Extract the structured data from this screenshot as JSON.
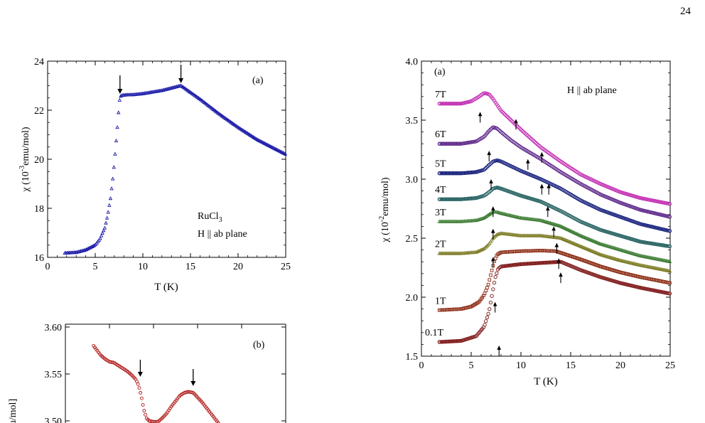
{
  "page_number": "24",
  "chart_data": [
    {
      "id": "a_left",
      "type": "scatter",
      "panel_label": "(a)",
      "xlabel": "T (K)",
      "ylabel": "χ (10-3emu/mol)",
      "xlim": [
        0,
        25
      ],
      "ylim": [
        16,
        24
      ],
      "xticks": [
        "0",
        "5",
        "10",
        "15",
        "20",
        "25"
      ],
      "yticks": [
        "16",
        "18",
        "20",
        "22",
        "24"
      ],
      "annotation_lines": [
        "RuCl3",
        "H || ab plane"
      ],
      "arrows_x": [
        7.6,
        14.0
      ],
      "color": "#1a1aa8",
      "marker": "triangle",
      "series": [
        {
          "x": [
            1.8,
            3,
            4,
            5,
            5.5,
            6,
            6.3,
            6.6,
            6.9,
            7.1,
            7.3,
            7.5,
            7.6,
            7.8,
            8.2,
            9,
            10,
            12,
            14,
            16,
            18,
            20,
            22,
            25
          ],
          "values": [
            16.17,
            16.2,
            16.3,
            16.5,
            16.75,
            17.2,
            17.7,
            18.4,
            19.4,
            20.3,
            21.2,
            22.2,
            22.55,
            22.6,
            22.62,
            22.63,
            22.67,
            22.8,
            23.0,
            22.45,
            21.85,
            21.3,
            20.8,
            20.2
          ]
        }
      ]
    },
    {
      "id": "b_left",
      "type": "scatter",
      "panel_label": "(b)",
      "ylabel": "mu/mol]",
      "xlim": [
        0,
        25
      ],
      "ylim": [
        3.5,
        3.6
      ],
      "yticks": [
        "3.50",
        "3.55",
        "3.60"
      ],
      "arrows_x": [
        8.5,
        14.5
      ],
      "color": "#b01818",
      "marker": "circle",
      "series": [
        {
          "x": [
            3.2,
            3.6,
            4,
            4.5,
            5,
            5.5,
            6,
            6.5,
            7,
            7.5,
            8,
            8.3,
            8.6,
            8.9,
            9.2,
            9.5,
            10,
            10.5,
            11,
            11.5,
            12,
            12.5,
            13,
            13.5,
            14,
            14.5,
            15,
            15.5,
            16,
            16.5,
            17,
            17.5
          ],
          "values": [
            3.58,
            3.575,
            3.57,
            3.566,
            3.563,
            3.562,
            3.559,
            3.556,
            3.553,
            3.549,
            3.544,
            3.538,
            3.527,
            3.512,
            3.503,
            3.5,
            3.499,
            3.499,
            3.503,
            3.508,
            3.515,
            3.521,
            3.527,
            3.53,
            3.531,
            3.53,
            3.525,
            3.52,
            3.514,
            3.508,
            3.502,
            3.496
          ]
        }
      ]
    },
    {
      "id": "a_right",
      "type": "scatter",
      "panel_label": "(a)",
      "xlabel": "T (K)",
      "ylabel": "χ (10-2emu/mol)",
      "xlim": [
        0,
        25
      ],
      "ylim": [
        1.5,
        4.0
      ],
      "xticks": [
        "0",
        "5",
        "10",
        "15",
        "20",
        "25"
      ],
      "yticks": [
        "1.5",
        "2.0",
        "2.5",
        "3.0",
        "3.5",
        "4.0"
      ],
      "annotation": "H || ab plane",
      "series": [
        {
          "name": "0.1T",
          "color": "#7a1010",
          "marker": "circle",
          "x": [
            1.8,
            4,
            5.5,
            6.3,
            6.8,
            7.1,
            7.4,
            7.7,
            8,
            9,
            10,
            12,
            14,
            16,
            18,
            20,
            22,
            25
          ],
          "values": [
            1.62,
            1.63,
            1.67,
            1.75,
            1.88,
            2.02,
            2.16,
            2.24,
            2.26,
            2.27,
            2.28,
            2.29,
            2.3,
            2.23,
            2.17,
            2.12,
            2.08,
            2.03
          ],
          "arrows": [
            [
              7.8,
              1.59
            ],
            [
              14.0,
              2.21
            ]
          ]
        },
        {
          "name": "1T",
          "color": "#8b2a12",
          "marker": "square",
          "x": [
            1.8,
            4,
            5,
            5.8,
            6.3,
            6.7,
            7,
            7.3,
            7.6,
            8,
            9,
            10,
            12,
            13.5,
            16,
            18,
            20,
            22,
            25
          ],
          "values": [
            1.89,
            1.9,
            1.92,
            1.96,
            2.02,
            2.1,
            2.2,
            2.3,
            2.36,
            2.38,
            2.385,
            2.39,
            2.395,
            2.39,
            2.32,
            2.26,
            2.21,
            2.17,
            2.12
          ],
          "arrows": [
            [
              7.4,
              1.96
            ],
            [
              13.8,
              2.33
            ]
          ]
        },
        {
          "name": "2T",
          "color": "#7a7a22",
          "marker": "triangle",
          "x": [
            1.8,
            4,
            5.5,
            6.3,
            6.8,
            7.2,
            7.6,
            8,
            9,
            10,
            12,
            14,
            16,
            18,
            20,
            22,
            25
          ],
          "values": [
            2.37,
            2.37,
            2.38,
            2.41,
            2.45,
            2.5,
            2.53,
            2.54,
            2.53,
            2.52,
            2.52,
            2.5,
            2.43,
            2.36,
            2.31,
            2.27,
            2.22
          ],
          "arrows": [
            [
              7.2,
              2.34
            ],
            [
              13.6,
              2.46
            ]
          ]
        },
        {
          "name": "3T",
          "color": "#3a7a30",
          "marker": "triangle",
          "x": [
            1.8,
            4,
            5.5,
            6.3,
            6.8,
            7.2,
            7.6,
            8,
            9,
            10,
            12,
            14,
            16,
            18,
            20,
            22,
            25
          ],
          "values": [
            2.64,
            2.64,
            2.65,
            2.67,
            2.7,
            2.72,
            2.72,
            2.71,
            2.69,
            2.67,
            2.65,
            2.6,
            2.52,
            2.45,
            2.4,
            2.35,
            2.3
          ],
          "arrows": [
            [
              7.2,
              2.58
            ],
            [
              13.3,
              2.6
            ]
          ]
        },
        {
          "name": "4T",
          "color": "#1d5b5b",
          "marker": "circle",
          "x": [
            1.8,
            4,
            5.5,
            6.3,
            6.8,
            7.2,
            7.6,
            8,
            9,
            10,
            12,
            14,
            16,
            18,
            20,
            22,
            25
          ],
          "values": [
            2.83,
            2.83,
            2.84,
            2.86,
            2.89,
            2.92,
            2.93,
            2.92,
            2.89,
            2.86,
            2.81,
            2.73,
            2.64,
            2.57,
            2.52,
            2.47,
            2.43
          ],
          "arrows": [
            [
              7.2,
              2.77
            ],
            [
              12.7,
              2.77
            ]
          ]
        },
        {
          "name": "5T",
          "color": "#101a78",
          "marker": "circle",
          "x": [
            1.8,
            4,
            5.5,
            6.3,
            6.8,
            7.2,
            7.6,
            8,
            9,
            10,
            12,
            14,
            16,
            18,
            20,
            22,
            25
          ],
          "values": [
            3.05,
            3.05,
            3.06,
            3.08,
            3.12,
            3.15,
            3.16,
            3.15,
            3.11,
            3.07,
            3.0,
            2.92,
            2.82,
            2.74,
            2.68,
            2.62,
            2.56
          ],
          "arrows": [
            [
              7.0,
              3.0
            ],
            [
              12.1,
              2.96
            ],
            [
              12.8,
              2.96
            ]
          ]
        },
        {
          "name": "6T",
          "color": "#5a2288",
          "marker": "circle",
          "x": [
            1.8,
            4,
            5.5,
            6.3,
            6.8,
            7.2,
            7.6,
            8,
            9,
            10,
            12,
            14,
            16,
            18,
            20,
            22,
            25
          ],
          "values": [
            3.3,
            3.3,
            3.32,
            3.36,
            3.41,
            3.44,
            3.43,
            3.4,
            3.33,
            3.27,
            3.17,
            3.06,
            2.96,
            2.87,
            2.8,
            2.74,
            2.68
          ],
          "arrows": [
            [
              6.8,
              3.24
            ],
            [
              10.7,
              3.17
            ],
            [
              12.1,
              3.23
            ]
          ]
        },
        {
          "name": "7T",
          "color": "#c028b0",
          "marker": "circle",
          "x": [
            1.8,
            4,
            5,
            5.8,
            6.3,
            6.8,
            7.2,
            7.6,
            8,
            9,
            10,
            12,
            14,
            16,
            18,
            20,
            22,
            25
          ],
          "values": [
            3.64,
            3.64,
            3.66,
            3.7,
            3.73,
            3.72,
            3.68,
            3.63,
            3.58,
            3.5,
            3.42,
            3.27,
            3.15,
            3.04,
            2.96,
            2.89,
            2.84,
            2.79
          ],
          "arrows": [
            [
              5.9,
              3.57
            ],
            [
              9.5,
              3.51
            ]
          ]
        }
      ]
    }
  ]
}
